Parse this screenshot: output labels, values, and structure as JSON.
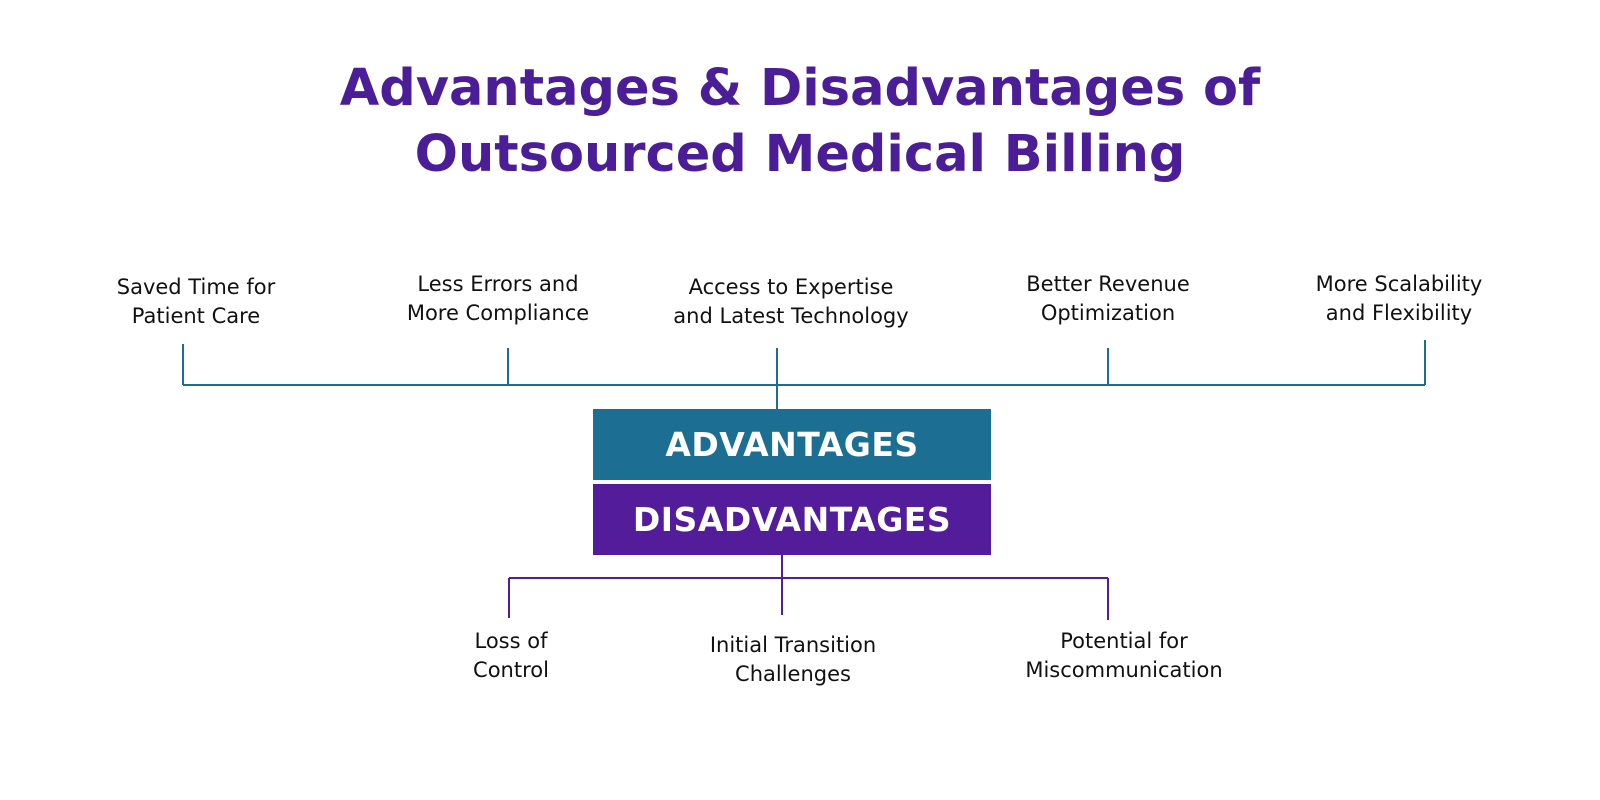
{
  "title": {
    "line1": "Advantages & Disadvantages of",
    "line2": "Outsourced Medical Billing"
  },
  "advantages_heading": "ADVANTAGES",
  "disadvantages_heading": "DISADVANTAGES",
  "advantages": [
    {
      "line1": "Saved Time for",
      "line2": "Patient Care"
    },
    {
      "line1": "Less Errors and",
      "line2": "More Compliance"
    },
    {
      "line1": "Access to Expertise",
      "line2": "and Latest Technology"
    },
    {
      "line1": "Better Revenue",
      "line2": "Optimization"
    },
    {
      "line1": "More Scalability",
      "line2": "and Flexibility"
    }
  ],
  "disadvantages": [
    {
      "line1": "Loss of",
      "line2": "Control"
    },
    {
      "line1": "Initial Transition",
      "line2": "Challenges"
    },
    {
      "line1": "Potential for",
      "line2": "Miscommunication"
    }
  ],
  "colors": {
    "title": "#4b1d96",
    "advantages": "#1c6f93",
    "disadvantages": "#521c9a"
  }
}
